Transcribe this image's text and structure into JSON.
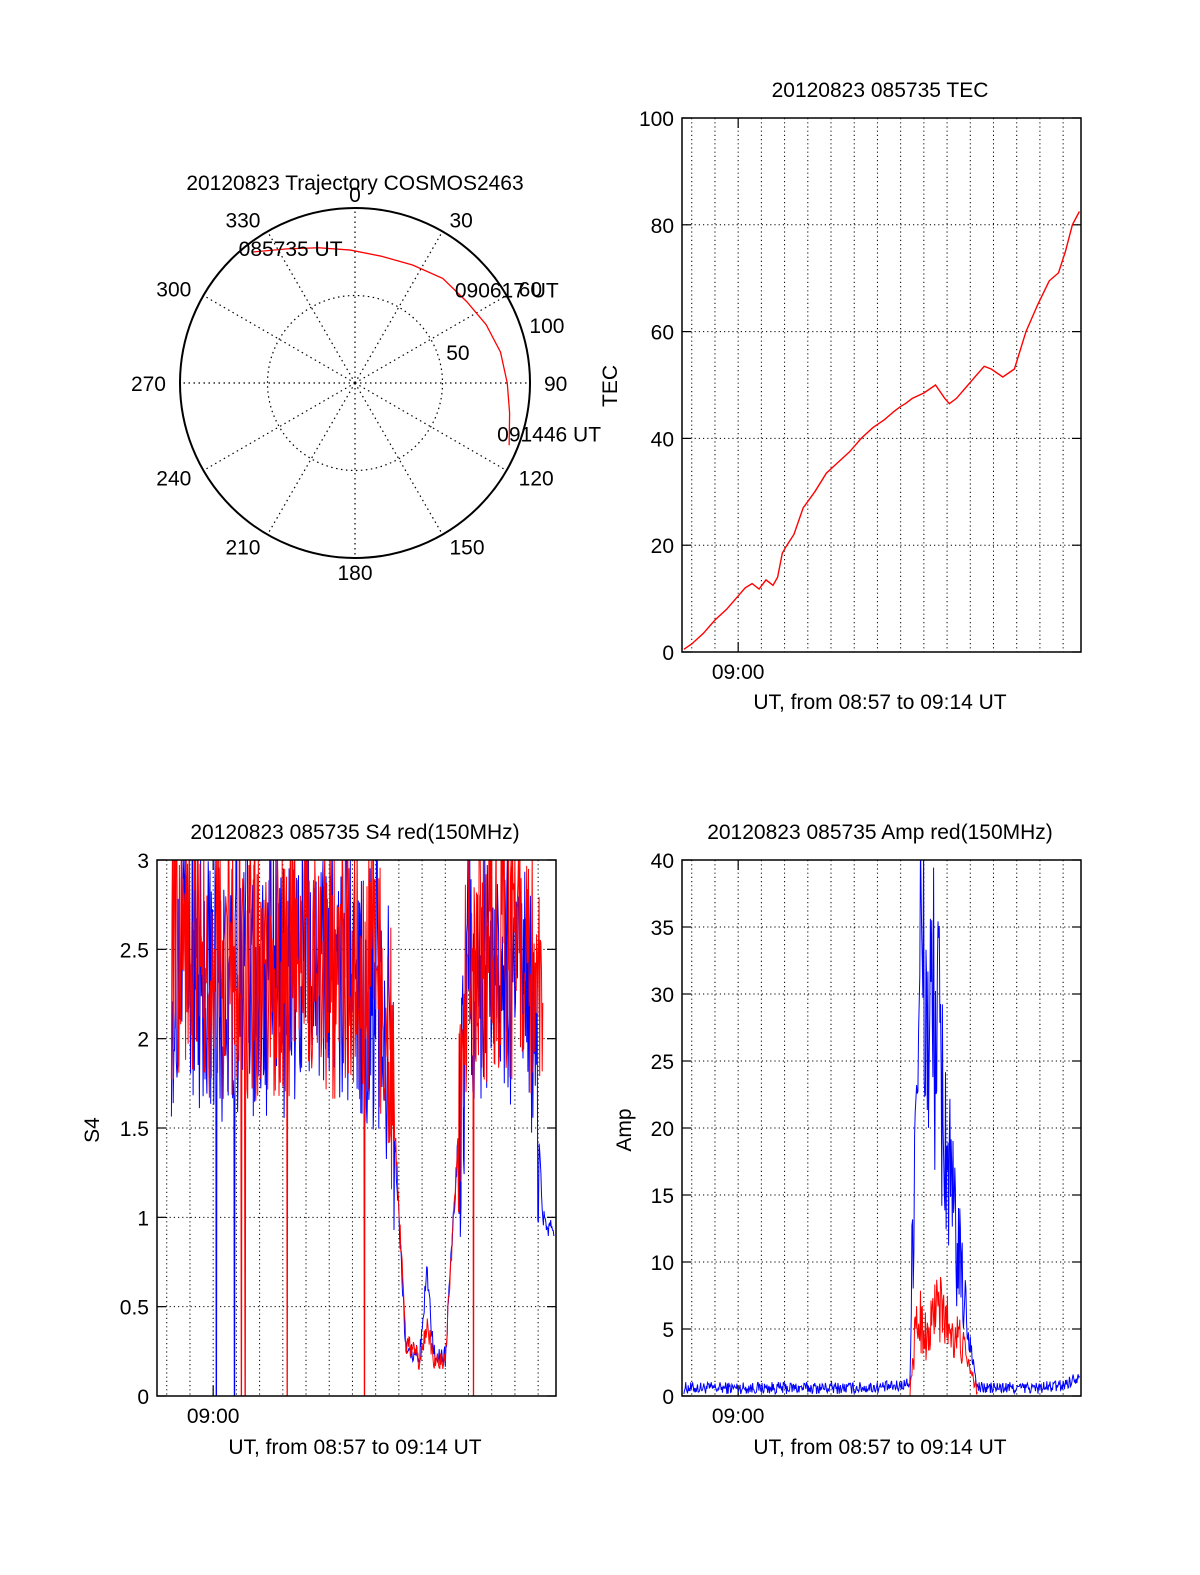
{
  "colors": {
    "red": "#ff0000",
    "blue": "#0000ff",
    "axis": "#000000",
    "grid": "#000000"
  },
  "chart_data": [
    {
      "type": "polar",
      "title": "20120823 Trajectory COSMOS2463",
      "azimuth_labels": [
        "0",
        "30",
        "60",
        "90",
        "120",
        "150",
        "180",
        "210",
        "240",
        "270",
        "300",
        "330"
      ],
      "radial_labels": [
        "50",
        "100"
      ],
      "azimuth_ticks_deg": [
        0,
        30,
        60,
        90,
        120,
        150,
        180,
        210,
        240,
        270,
        300,
        330
      ],
      "radial_ticks": [
        50,
        100
      ],
      "rlim": [
        0,
        100
      ],
      "grid": true,
      "series": [
        {
          "color": "#ff0000",
          "points": [
            {
              "az": 322,
              "zen": 95
            },
            {
              "az": 333,
              "zen": 86
            },
            {
              "az": 345,
              "zen": 80
            },
            {
              "az": 358,
              "zen": 76
            },
            {
              "az": 12,
              "zen": 74
            },
            {
              "az": 26,
              "zen": 75
            },
            {
              "az": 40,
              "zen": 78
            },
            {
              "az": 54,
              "zen": 79
            },
            {
              "az": 66,
              "zen": 82
            },
            {
              "az": 78,
              "zen": 85
            },
            {
              "az": 90,
              "zen": 87
            },
            {
              "az": 101,
              "zen": 90
            },
            {
              "az": 112,
              "zen": 95
            }
          ]
        }
      ],
      "annotations": [
        {
          "text": "085735 UT",
          "az": 322,
          "zen": 95
        },
        {
          "text": "090617 UT",
          "az": 54,
          "zen": 79
        },
        {
          "text": "091446 UT",
          "az": 112,
          "zen": 95
        }
      ]
    },
    {
      "type": "line",
      "title": "20120823 085735 TEC",
      "xlabel": "UT, from 08:57 to 09:14 UT",
      "ylabel": "TEC",
      "xlim": [
        57.58,
        74.77
      ],
      "ylim": [
        0,
        100
      ],
      "yticks": [
        0,
        20,
        40,
        60,
        80,
        100
      ],
      "xticks": [
        {
          "value": 60,
          "label": "09:00"
        }
      ],
      "grid": true,
      "series": [
        {
          "color": "#ff0000",
          "x": [
            57.66,
            58.0,
            58.5,
            59.0,
            59.5,
            60.0,
            60.3,
            60.6,
            60.9,
            61.2,
            61.5,
            61.7,
            61.9,
            62.1,
            62.4,
            62.8,
            63.3,
            63.8,
            64.3,
            64.8,
            65.3,
            65.8,
            66.3,
            66.7,
            67.0,
            67.2,
            67.5,
            68.0,
            68.5,
            68.9,
            69.1,
            69.4,
            69.9,
            70.3,
            70.6,
            70.9,
            71.4,
            71.9,
            72.4,
            72.9,
            73.4,
            73.8,
            74.1,
            74.4,
            74.7
          ],
          "y": [
            0.5,
            1.5,
            3.5,
            6,
            8,
            10.5,
            12,
            12.8,
            11.8,
            13.5,
            12.5,
            14,
            18.5,
            20,
            22,
            27,
            30,
            33.5,
            35.5,
            37.5,
            40,
            42,
            43.5,
            45,
            46,
            46.5,
            47.5,
            48.5,
            50,
            47.5,
            46.5,
            47.5,
            50,
            52,
            53.5,
            53,
            51.5,
            53,
            60,
            65,
            69.5,
            71,
            75,
            80,
            82.5
          ]
        }
      ]
    },
    {
      "type": "line",
      "title": "20120823 085735 S4 red(150MHz)",
      "xlabel": "UT, from 08:57 to 09:14 UT",
      "ylabel": "S4",
      "xlim": [
        57.58,
        74.77
      ],
      "ylim": [
        0,
        3
      ],
      "yticks": [
        0,
        0.5,
        1,
        1.5,
        2,
        2.5,
        3
      ],
      "ytick_labels": [
        "0",
        "0.5",
        "1",
        "1.5",
        "2",
        "2.5",
        "3"
      ],
      "xticks": [
        {
          "value": 60,
          "label": "09:00"
        }
      ],
      "grid": true,
      "series": [
        {
          "color": "#0000ff",
          "style": "noisy",
          "x": [
            58.2,
            59.0,
            60.0,
            61.0,
            62.0,
            63.0,
            64.0,
            65.0,
            66.2,
            67.0,
            67.6,
            68.3,
            68.9,
            69.2,
            69.5,
            70.0,
            71.0,
            72.0,
            73.0,
            73.8,
            74.2,
            74.7
          ],
          "y": [
            2.3,
            2.4,
            2.3,
            2.2,
            2.3,
            2.3,
            2.4,
            2.3,
            2.3,
            2.2,
            2.0,
            0.25,
            0.22,
            0.7,
            0.24,
            0.22,
            2.4,
            2.4,
            2.3,
            2.1,
            1.0,
            0.9
          ]
        },
        {
          "color": "#ff0000",
          "style": "noisy",
          "x": [
            58.2,
            59.0,
            60.0,
            61.0,
            62.0,
            63.0,
            64.0,
            65.0,
            66.2,
            67.0,
            67.6,
            68.3,
            68.9,
            69.2,
            69.5,
            70.0,
            71.0,
            72.0,
            73.0,
            73.8,
            74.2
          ],
          "y": [
            2.5,
            2.5,
            2.4,
            2.4,
            2.4,
            2.4,
            2.5,
            2.4,
            2.4,
            2.3,
            2.1,
            0.3,
            0.2,
            0.4,
            0.2,
            0.2,
            2.5,
            2.5,
            2.4,
            2.3,
            2.2
          ]
        }
      ]
    },
    {
      "type": "line",
      "title": "20120823 085735 Amp red(150MHz)",
      "xlabel": "UT, from 08:57 to 09:14 UT",
      "ylabel": "Amp",
      "xlim": [
        57.58,
        74.77
      ],
      "ylim": [
        0,
        40
      ],
      "yticks": [
        0,
        5,
        10,
        15,
        20,
        25,
        30,
        35,
        40
      ],
      "xticks": [
        {
          "value": 60,
          "label": "09:00"
        }
      ],
      "grid": true,
      "series": [
        {
          "color": "#0000ff",
          "style": "noisy",
          "x": [
            57.66,
            59.0,
            61.0,
            63.0,
            65.0,
            66.8,
            67.4,
            67.6,
            67.8,
            68.2,
            68.5,
            68.8,
            69.2,
            69.6,
            70.0,
            70.3,
            71.0,
            72.0,
            73.0,
            74.0,
            74.7
          ],
          "y": [
            0.6,
            0.6,
            0.6,
            0.6,
            0.6,
            0.7,
            1.0,
            20,
            33,
            27,
            29,
            22,
            14,
            9,
            4,
            0.6,
            0.6,
            0.6,
            0.6,
            0.8,
            1.5
          ]
        },
        {
          "color": "#ff0000",
          "style": "noisy",
          "x": [
            67.4,
            67.6,
            67.8,
            68.2,
            68.5,
            68.8,
            69.2,
            69.6,
            70.0,
            70.3
          ],
          "y": [
            0.3,
            4,
            6,
            4,
            7,
            6,
            5,
            4,
            2,
            0.3
          ]
        }
      ]
    }
  ]
}
